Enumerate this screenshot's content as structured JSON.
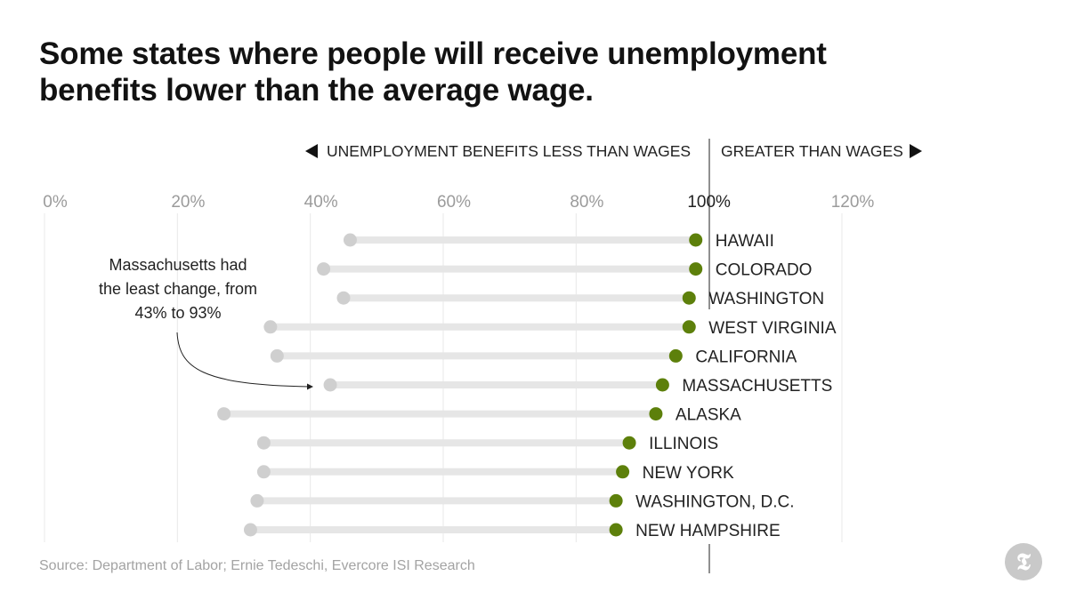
{
  "title_line1": "Some states where people will receive unemployment",
  "title_line2": "benefits lower than the average wage.",
  "source": "Source: Department of Labor; Ernie Tedeschi, Evercore ISI Research",
  "logo_glyph": "𝕿",
  "colors": {
    "accent": "#5d800b",
    "before_dot": "#cfcfcf",
    "track": "#e6e6e6",
    "grid": "#e8e8e8",
    "text": "#222222",
    "muted": "#9b9b9b"
  },
  "chart_data": {
    "type": "dumbbell",
    "title": "Some states where people will receive unemployment benefits lower than the average wage.",
    "left_direction_label": "UNEMPLOYMENT BENEFITS LESS THAN WAGES",
    "right_direction_label": "GREATER THAN WAGES",
    "x_ticks": [
      "0%",
      "20%",
      "40%",
      "60%",
      "80%",
      "100%",
      "120%"
    ],
    "xlim": [
      0,
      120
    ],
    "annotation": [
      "Massachusetts had",
      "the least change, from",
      "43% to 93%"
    ],
    "series_names": [
      "before",
      "after"
    ],
    "states": [
      {
        "name": "HAWAII",
        "before": 46,
        "after": 98
      },
      {
        "name": "COLORADO",
        "before": 42,
        "after": 98
      },
      {
        "name": "WASHINGTON",
        "before": 45,
        "after": 97
      },
      {
        "name": "WEST VIRGINIA",
        "before": 34,
        "after": 97
      },
      {
        "name": "CALIFORNIA",
        "before": 35,
        "after": 95
      },
      {
        "name": "MASSACHUSETTS",
        "before": 43,
        "after": 93
      },
      {
        "name": "ALASKA",
        "before": 27,
        "after": 92
      },
      {
        "name": "ILLINOIS",
        "before": 33,
        "after": 88
      },
      {
        "name": "NEW YORK",
        "before": 33,
        "after": 87
      },
      {
        "name": "WASHINGTON, D.C.",
        "before": 32,
        "after": 86
      },
      {
        "name": "NEW HAMPSHIRE",
        "before": 31,
        "after": 86
      }
    ]
  }
}
